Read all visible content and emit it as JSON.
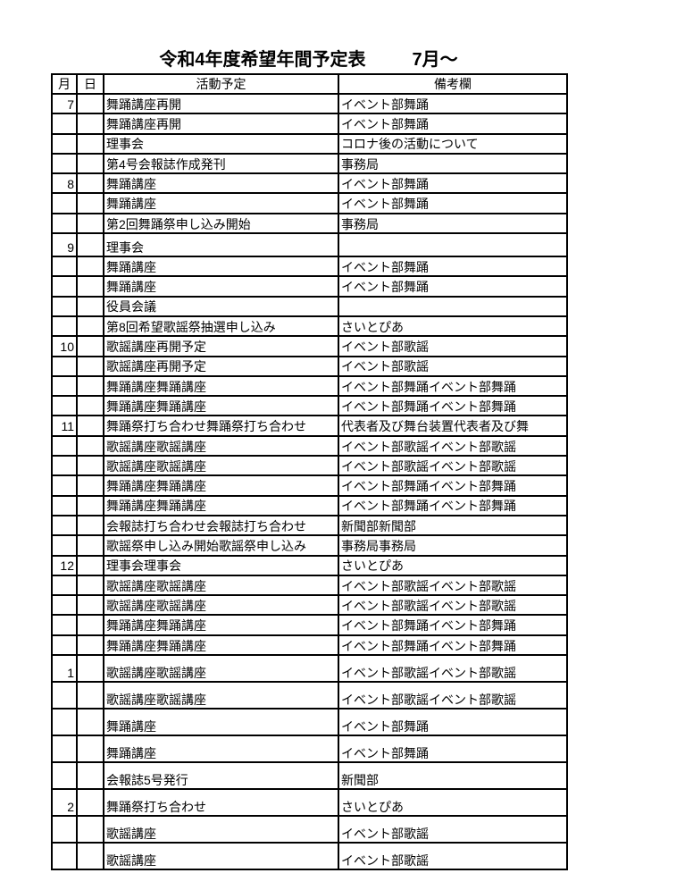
{
  "title": {
    "main": "令和4年度希望年間予定表",
    "suffix": "7月～"
  },
  "colors": {
    "text": "#000000",
    "border": "#000000",
    "background": "#ffffff"
  },
  "table": {
    "headers": {
      "month": "月",
      "day": "日",
      "activity": "活動予定",
      "remarks": "備考欄"
    },
    "rows": [
      {
        "month": "7",
        "day": "",
        "activity": "舞踊講座再開",
        "remarks": "イベント部舞踊"
      },
      {
        "month": "",
        "day": "",
        "activity": "舞踊講座再開",
        "remarks": "イベント部舞踊"
      },
      {
        "month": "",
        "day": "",
        "activity": "理事会",
        "remarks": "コロナ後の活動について"
      },
      {
        "month": "",
        "day": "",
        "activity": "第4号会報誌作成発刊",
        "remarks": "事務局"
      },
      {
        "month": "8",
        "day": "",
        "activity": "舞踊講座",
        "remarks": "イベント部舞踊"
      },
      {
        "month": "",
        "day": "",
        "activity": "舞踊講座",
        "remarks": "イベント部舞踊"
      },
      {
        "month": "",
        "day": "",
        "activity": "第2回舞踊祭申し込み開始",
        "remarks": "事務局"
      },
      {
        "month": "9",
        "day": "",
        "activity": "理事会",
        "remarks": "",
        "size": "tall",
        "activityLarge": true
      },
      {
        "month": "",
        "day": "",
        "activity": "舞踊講座",
        "remarks": "イベント部舞踊"
      },
      {
        "month": "",
        "day": "",
        "activity": "舞踊講座",
        "remarks": "イベント部舞踊"
      },
      {
        "month": "",
        "day": "",
        "activity": "役員会議",
        "remarks": ""
      },
      {
        "month": "",
        "day": "",
        "activity": "第8回希望歌謡祭抽選申し込み",
        "remarks": "さいとぴあ",
        "remarksLarge": true
      },
      {
        "month": "10",
        "day": "",
        "activity": "歌謡講座再開予定",
        "remarks": "イベント部歌謡"
      },
      {
        "month": "",
        "day": "",
        "activity": "歌謡講座再開予定",
        "remarks": "イベント部歌謡"
      },
      {
        "month": "",
        "day": "",
        "activity": "舞踊講座舞踊講座",
        "remarks": "イベント部舞踊イベント部舞踊"
      },
      {
        "month": "",
        "day": "",
        "activity": "舞踊講座舞踊講座",
        "remarks": "イベント部舞踊イベント部舞踊"
      },
      {
        "month": "11",
        "day": "",
        "activity": "舞踊祭打ち合わせ舞踊祭打ち合わせ",
        "remarks": "代表者及び舞台装置代表者及び舞"
      },
      {
        "month": "",
        "day": "",
        "activity": "歌謡講座歌謡講座",
        "remarks": "イベント部歌謡イベント部歌謡"
      },
      {
        "month": "",
        "day": "",
        "activity": "歌謡講座歌謡講座",
        "remarks": "イベント部歌謡イベント部歌謡"
      },
      {
        "month": "",
        "day": "",
        "activity": "舞踊講座舞踊講座",
        "remarks": "イベント部舞踊イベント部舞踊"
      },
      {
        "month": "",
        "day": "",
        "activity": "舞踊講座舞踊講座",
        "remarks": "イベント部舞踊イベント部舞踊"
      },
      {
        "month": "",
        "day": "",
        "activity": "会報誌打ち合わせ会報誌打ち合わせ",
        "remarks": "新聞部新聞部"
      },
      {
        "month": "",
        "day": "",
        "activity": "歌謡祭申し込み開始歌謡祭申し込み",
        "remarks": "事務局事務局"
      },
      {
        "month": "12",
        "day": "",
        "activity": "理事会理事会",
        "remarks": "さいとぴあ",
        "activityLarge": true,
        "remarksLarge": true
      },
      {
        "month": "",
        "day": "",
        "activity": "歌謡講座歌謡講座",
        "remarks": "イベント部歌謡イベント部歌謡"
      },
      {
        "month": "",
        "day": "",
        "activity": "歌謡講座歌謡講座",
        "remarks": "イベント部歌謡イベント部歌謡"
      },
      {
        "month": "",
        "day": "",
        "activity": "舞踊講座舞踊講座",
        "remarks": "イベント部舞踊イベント部舞踊"
      },
      {
        "month": "",
        "day": "",
        "activity": "舞踊講座舞踊講座",
        "remarks": "イベント部舞踊イベント部舞踊"
      },
      {
        "month": "1",
        "day": "",
        "activity": "歌謡講座歌謡講座",
        "remarks": "イベント部歌謡イベント部歌謡",
        "size": "large"
      },
      {
        "month": "",
        "day": "",
        "activity": "歌謡講座歌謡講座",
        "remarks": "イベント部歌謡イベント部歌謡",
        "size": "large"
      },
      {
        "month": "",
        "day": "",
        "activity": "舞踊講座",
        "remarks": "イベント部舞踊",
        "size": "large"
      },
      {
        "month": "",
        "day": "",
        "activity": "舞踊講座",
        "remarks": "イベント部舞踊",
        "size": "large"
      },
      {
        "month": "",
        "day": "",
        "activity": "会報誌5号発行",
        "remarks": "新聞部",
        "size": "large"
      },
      {
        "month": "2",
        "day": "",
        "activity": "舞踊祭打ち合わせ",
        "remarks": "さいとぴあ",
        "size": "large"
      },
      {
        "month": "",
        "day": "",
        "activity": "歌謡講座",
        "remarks": "イベント部歌謡",
        "size": "large"
      },
      {
        "month": "",
        "day": "",
        "activity": "歌謡講座",
        "remarks": "イベント部歌謡",
        "size": "large"
      }
    ]
  }
}
